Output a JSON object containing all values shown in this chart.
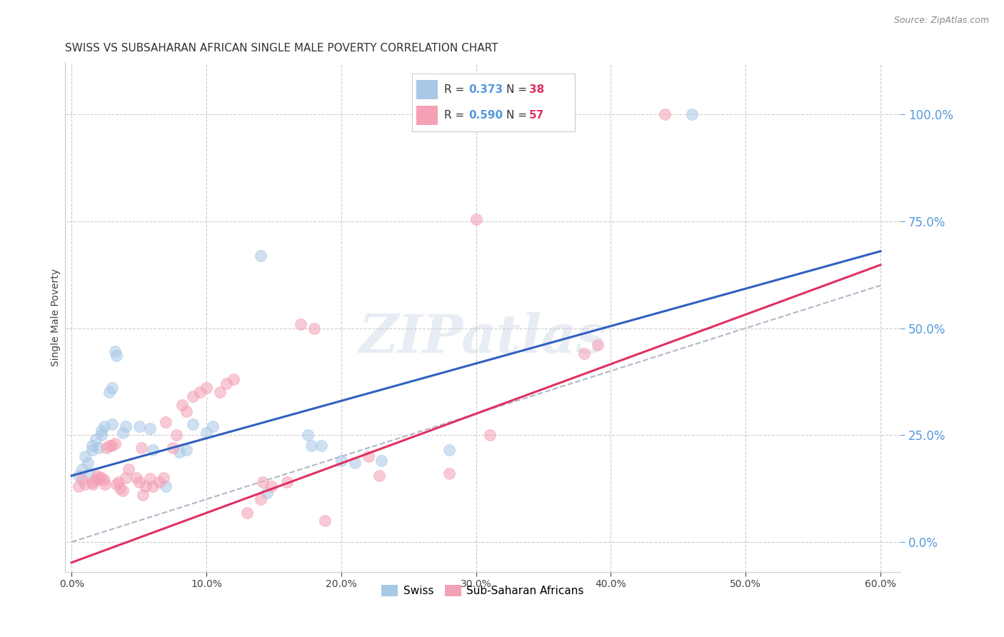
{
  "title": "SWISS VS SUBSAHARAN AFRICAN SINGLE MALE POVERTY CORRELATION CHART",
  "source": "Source: ZipAtlas.com",
  "xlabel": "",
  "ylabel": "Single Male Poverty",
  "watermark": "ZIPatlas",
  "xlim": [
    -0.005,
    0.615
  ],
  "ylim": [
    -0.07,
    1.12
  ],
  "xticks": [
    0.0,
    0.1,
    0.2,
    0.3,
    0.4,
    0.5,
    0.6
  ],
  "yticks_right": [
    0.0,
    0.25,
    0.5,
    0.75,
    1.0
  ],
  "legend_swiss_label": "Swiss",
  "legend_ssa_label": "Sub-Saharan Africans",
  "swiss_color": "#a8c8e8",
  "ssa_color": "#f4a0b5",
  "swiss_line_color": "#3060c0",
  "ssa_line_color": "#e03060",
  "ref_line_color": "#b0b8c8",
  "swiss_points": [
    [
      0.005,
      0.155
    ],
    [
      0.008,
      0.17
    ],
    [
      0.01,
      0.2
    ],
    [
      0.012,
      0.185
    ],
    [
      0.013,
      0.16
    ],
    [
      0.015,
      0.215
    ],
    [
      0.015,
      0.225
    ],
    [
      0.018,
      0.24
    ],
    [
      0.02,
      0.22
    ],
    [
      0.022,
      0.25
    ],
    [
      0.022,
      0.26
    ],
    [
      0.024,
      0.27
    ],
    [
      0.028,
      0.35
    ],
    [
      0.03,
      0.36
    ],
    [
      0.03,
      0.275
    ],
    [
      0.032,
      0.445
    ],
    [
      0.033,
      0.435
    ],
    [
      0.038,
      0.255
    ],
    [
      0.04,
      0.27
    ],
    [
      0.05,
      0.27
    ],
    [
      0.058,
      0.265
    ],
    [
      0.06,
      0.215
    ],
    [
      0.07,
      0.13
    ],
    [
      0.08,
      0.21
    ],
    [
      0.085,
      0.215
    ],
    [
      0.09,
      0.275
    ],
    [
      0.1,
      0.255
    ],
    [
      0.105,
      0.27
    ],
    [
      0.14,
      0.67
    ],
    [
      0.175,
      0.25
    ],
    [
      0.178,
      0.225
    ],
    [
      0.185,
      0.225
    ],
    [
      0.2,
      0.19
    ],
    [
      0.21,
      0.185
    ],
    [
      0.23,
      0.19
    ],
    [
      0.28,
      0.215
    ],
    [
      0.46,
      1.0
    ],
    [
      0.145,
      0.115
    ]
  ],
  "ssa_points": [
    [
      0.005,
      0.13
    ],
    [
      0.008,
      0.145
    ],
    [
      0.01,
      0.135
    ],
    [
      0.015,
      0.14
    ],
    [
      0.016,
      0.135
    ],
    [
      0.018,
      0.145
    ],
    [
      0.019,
      0.155
    ],
    [
      0.02,
      0.15
    ],
    [
      0.022,
      0.15
    ],
    [
      0.024,
      0.145
    ],
    [
      0.025,
      0.135
    ],
    [
      0.026,
      0.22
    ],
    [
      0.028,
      0.225
    ],
    [
      0.03,
      0.225
    ],
    [
      0.032,
      0.23
    ],
    [
      0.033,
      0.135
    ],
    [
      0.035,
      0.14
    ],
    [
      0.036,
      0.125
    ],
    [
      0.038,
      0.12
    ],
    [
      0.04,
      0.15
    ],
    [
      0.042,
      0.17
    ],
    [
      0.048,
      0.15
    ],
    [
      0.05,
      0.14
    ],
    [
      0.052,
      0.22
    ],
    [
      0.053,
      0.11
    ],
    [
      0.055,
      0.13
    ],
    [
      0.058,
      0.148
    ],
    [
      0.06,
      0.13
    ],
    [
      0.065,
      0.14
    ],
    [
      0.068,
      0.15
    ],
    [
      0.07,
      0.28
    ],
    [
      0.075,
      0.22
    ],
    [
      0.078,
      0.25
    ],
    [
      0.082,
      0.32
    ],
    [
      0.085,
      0.305
    ],
    [
      0.09,
      0.34
    ],
    [
      0.095,
      0.35
    ],
    [
      0.1,
      0.36
    ],
    [
      0.11,
      0.35
    ],
    [
      0.115,
      0.37
    ],
    [
      0.12,
      0.38
    ],
    [
      0.13,
      0.068
    ],
    [
      0.14,
      0.1
    ],
    [
      0.142,
      0.14
    ],
    [
      0.148,
      0.13
    ],
    [
      0.16,
      0.14
    ],
    [
      0.17,
      0.51
    ],
    [
      0.18,
      0.5
    ],
    [
      0.22,
      0.2
    ],
    [
      0.228,
      0.155
    ],
    [
      0.28,
      0.16
    ],
    [
      0.31,
      0.25
    ],
    [
      0.38,
      0.44
    ],
    [
      0.39,
      0.46
    ],
    [
      0.44,
      1.0
    ],
    [
      0.3,
      0.755
    ],
    [
      0.188,
      0.05
    ]
  ],
  "swiss_line": [
    0.0,
    0.155,
    0.6,
    0.68
  ],
  "ssa_line": [
    0.0,
    -0.048,
    0.6,
    0.648
  ],
  "ref_line": [
    0.0,
    0.0,
    0.6,
    0.6
  ],
  "background_color": "#ffffff",
  "grid_color": "#cccccc",
  "title_fontsize": 11,
  "label_fontsize": 10,
  "tick_fontsize": 10
}
